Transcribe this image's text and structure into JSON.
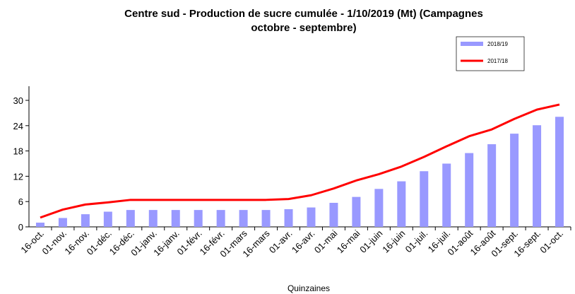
{
  "chart_data": {
    "type": "bar",
    "title": "Centre sud - Production de sucre cumulée - 1/10/2019 (Mt) (Campagnes octobre - septembre)",
    "x_label": "Quinzaines",
    "categories": [
      "16-oct.",
      "01-nov.",
      "16-nov.",
      "01-déc.",
      "16-déc.",
      "01-janv.",
      "16-janv.",
      "01-févr.",
      "16-févr.",
      "01-mars",
      "16-mars",
      "01-avr.",
      "16-avr.",
      "01-mai",
      "16-mai",
      "01-juin",
      "16-juin",
      "01-juil.",
      "16-juil.",
      "01-août",
      "16-août",
      "01-sept.",
      "16-sept.",
      "01-oct."
    ],
    "series": [
      {
        "name": "2018/19",
        "type": "bar",
        "color": "#9999ff",
        "values": [
          1.0,
          2.1,
          3.0,
          3.6,
          4.0,
          4.0,
          4.0,
          4.0,
          4.0,
          4.0,
          4.0,
          4.2,
          4.6,
          5.7,
          7.1,
          9.0,
          10.8,
          13.2,
          15.0,
          17.5,
          19.6,
          22.1,
          24.1,
          26.1
        ]
      },
      {
        "name": "2017/18",
        "type": "line",
        "color": "#ff0000",
        "values": [
          2.2,
          4.1,
          5.3,
          5.8,
          6.4,
          6.4,
          6.4,
          6.4,
          6.4,
          6.4,
          6.4,
          6.6,
          7.5,
          9.1,
          11.0,
          12.5,
          14.3,
          16.6,
          19.1,
          21.5,
          23.1,
          25.6,
          27.8,
          29.0
        ]
      }
    ],
    "ylim": [
      0,
      30
    ],
    "yticks": [
      0,
      6,
      12,
      18,
      24,
      30
    ],
    "grid": false,
    "legend": "top-right"
  }
}
